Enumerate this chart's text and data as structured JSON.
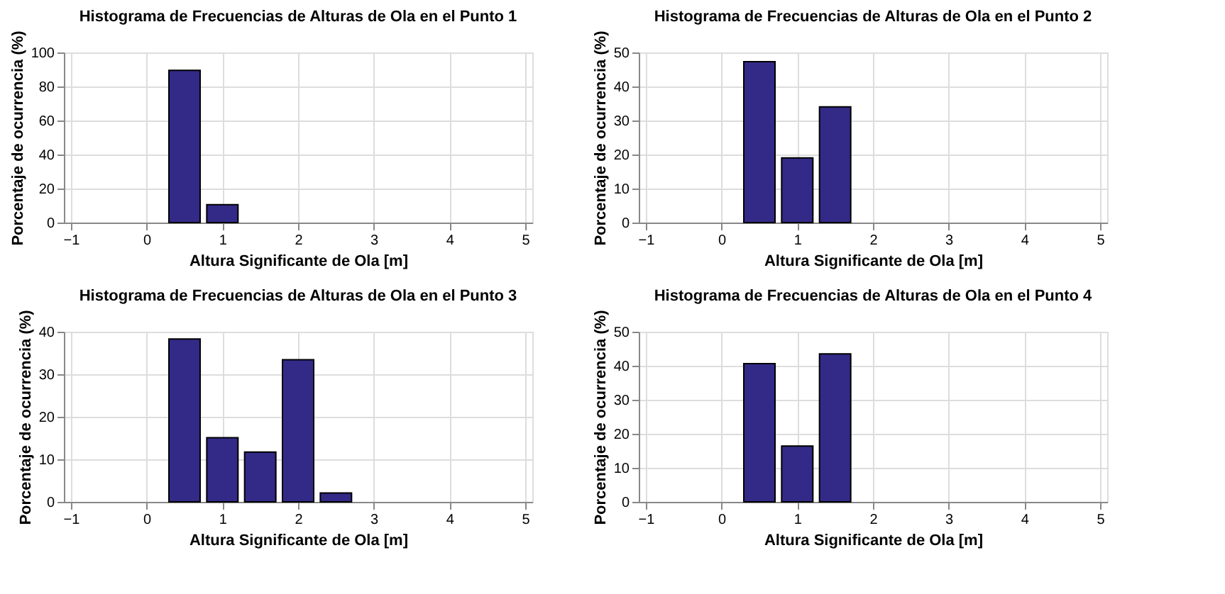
{
  "chart_data": [
    {
      "type": "bar",
      "title": "Histograma de Frecuencias de Alturas de Ola en el Punto 1",
      "xlabel": "Altura Significante de Ola [m]",
      "ylabel": "Porcentaje de ocurrencia (%)",
      "x": [
        0.5,
        1.0
      ],
      "values": [
        89.5,
        10.5
      ],
      "color": "#332a87",
      "xlim": [
        -1,
        5
      ],
      "xticks": [
        -1,
        0,
        1,
        2,
        3,
        4,
        5
      ],
      "ylim": [
        0,
        100
      ],
      "yticks": [
        0,
        20,
        40,
        60,
        80,
        100
      ],
      "grid": true
    },
    {
      "type": "bar",
      "title": "Histograma de Frecuencias de Alturas de Ola en el Punto 2",
      "xlabel": "Altura Significante de Ola [m]",
      "ylabel": "Porcentaje de ocurrencia (%)",
      "x": [
        0.5,
        1.0,
        1.5
      ],
      "values": [
        47.3,
        19.0,
        34.0
      ],
      "color": "#332a87",
      "xlim": [
        -1,
        5
      ],
      "xticks": [
        -1,
        0,
        1,
        2,
        3,
        4,
        5
      ],
      "ylim": [
        0,
        50
      ],
      "yticks": [
        0,
        10,
        20,
        30,
        40,
        50
      ],
      "grid": true
    },
    {
      "type": "bar",
      "title": "Histograma de Frecuencias de Alturas de Ola en el Punto 3",
      "xlabel": "Altura Significante de Ola [m]",
      "ylabel": "Porcentaje de ocurrencia (%)",
      "x": [
        0.5,
        1.0,
        1.5,
        2.0,
        2.5
      ],
      "values": [
        38.3,
        15.1,
        11.7,
        33.4,
        2.1
      ],
      "color": "#332a87",
      "xlim": [
        -1,
        5
      ],
      "xticks": [
        -1,
        0,
        1,
        2,
        3,
        4,
        5
      ],
      "ylim": [
        0,
        40
      ],
      "yticks": [
        0,
        10,
        20,
        30,
        40
      ],
      "grid": true
    },
    {
      "type": "bar",
      "title": "Histograma de Frecuencias de Alturas de Ola en el Punto 4",
      "xlabel": "Altura Significante de Ola [m]",
      "ylabel": "Porcentaje de ocurrencia (%)",
      "x": [
        0.5,
        1.0,
        1.5
      ],
      "values": [
        40.6,
        16.4,
        43.5
      ],
      "color": "#332a87",
      "xlim": [
        -1,
        5
      ],
      "xticks": [
        -1,
        0,
        1,
        2,
        3,
        4,
        5
      ],
      "ylim": [
        0,
        50
      ],
      "yticks": [
        0,
        10,
        20,
        30,
        40,
        50
      ],
      "grid": true
    }
  ]
}
